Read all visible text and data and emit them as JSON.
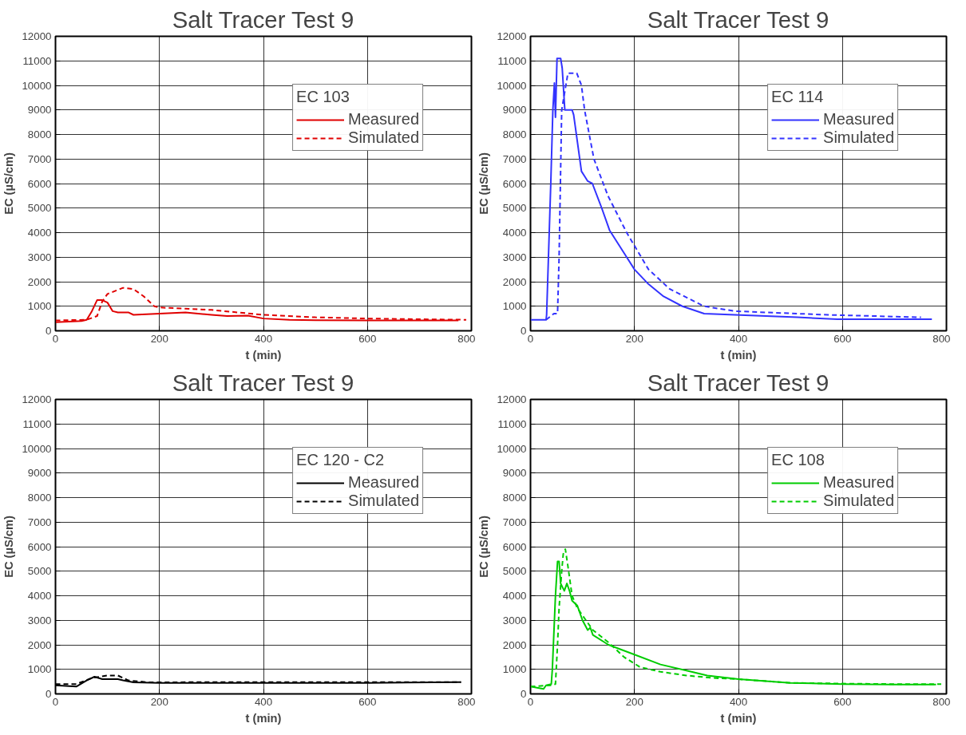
{
  "chart_data": [
    {
      "type": "line",
      "title": "Salt Tracer Test 9",
      "xlabel": "t (min)",
      "ylabel": "EC (µS/cm)",
      "legend_title": "EC 103",
      "legend": "top right",
      "grid": true,
      "xlim": [
        0,
        800
      ],
      "ylim": [
        0,
        12000
      ],
      "xticks": [
        0,
        200,
        400,
        600,
        800
      ],
      "yticks": [
        0,
        1000,
        2000,
        3000,
        4000,
        5000,
        6000,
        7000,
        8000,
        9000,
        10000,
        11000,
        12000
      ],
      "series": [
        {
          "name": "Measured",
          "color": "#e00000",
          "line_style": "solid",
          "x": [
            0,
            50,
            60,
            70,
            80,
            90,
            100,
            110,
            120,
            140,
            150,
            200,
            250,
            300,
            330,
            370,
            400,
            450,
            500,
            600,
            700,
            775
          ],
          "values": [
            350,
            400,
            450,
            800,
            1250,
            1250,
            1150,
            800,
            750,
            750,
            650,
            700,
            750,
            650,
            600,
            620,
            500,
            450,
            430,
            420,
            420,
            420
          ]
        },
        {
          "name": "Simulated",
          "color": "#e00000",
          "line_style": "dashed",
          "x": [
            0,
            60,
            80,
            90,
            100,
            130,
            150,
            170,
            190,
            200,
            250,
            300,
            400,
            500,
            600,
            700,
            790
          ],
          "values": [
            420,
            450,
            600,
            1200,
            1500,
            1750,
            1700,
            1400,
            1000,
            950,
            900,
            850,
            650,
            550,
            500,
            470,
            450
          ]
        }
      ]
    },
    {
      "type": "line",
      "title": "Salt Tracer Test 9",
      "xlabel": "t (min)",
      "ylabel": "EC (µS/cm)",
      "legend_title": "EC 114",
      "legend": "top right",
      "grid": true,
      "xlim": [
        0,
        800
      ],
      "ylim": [
        0,
        12000
      ],
      "xticks": [
        0,
        200,
        400,
        600,
        800
      ],
      "yticks": [
        0,
        1000,
        2000,
        3000,
        4000,
        5000,
        6000,
        7000,
        8000,
        9000,
        10000,
        11000,
        12000
      ],
      "series": [
        {
          "name": "Measured",
          "color": "#3333ff",
          "line_style": "solid",
          "x": [
            0,
            30,
            31,
            39,
            43,
            46,
            48,
            51,
            58,
            61,
            66,
            80,
            83,
            98,
            104,
            110,
            119,
            137,
            152,
            185,
            200,
            227,
            256,
            292,
            334,
            393,
            513,
            590,
            772
          ],
          "values": [
            450,
            450,
            650,
            6000,
            9000,
            10100,
            8700,
            11100,
            11100,
            10700,
            9000,
            9000,
            8800,
            6500,
            6300,
            6100,
            6000,
            5000,
            4100,
            3000,
            2500,
            1900,
            1400,
            1000,
            700,
            650,
            550,
            470,
            470
          ]
        },
        {
          "name": "Simulated",
          "color": "#3333ff",
          "line_style": "dashed",
          "x": [
            30,
            45,
            52,
            55,
            60,
            72,
            89,
            98,
            104,
            122,
            149,
            185,
            227,
            268,
            334,
            393,
            572,
            751
          ],
          "values": [
            450,
            700,
            700,
            3000,
            9000,
            10500,
            10500,
            10000,
            9000,
            7000,
            5500,
            4000,
            2500,
            1700,
            1000,
            800,
            650,
            550
          ]
        }
      ]
    },
    {
      "type": "line",
      "title": "Salt Tracer Test 9",
      "xlabel": "t (min)",
      "ylabel": "EC (µS/cm)",
      "legend_title": "EC 120 - C2",
      "legend": "top right",
      "grid": true,
      "xlim": [
        0,
        800
      ],
      "ylim": [
        0,
        12000
      ],
      "xticks": [
        0,
        200,
        400,
        600,
        800
      ],
      "yticks": [
        0,
        1000,
        2000,
        3000,
        4000,
        5000,
        6000,
        7000,
        8000,
        9000,
        10000,
        11000,
        12000
      ],
      "series": [
        {
          "name": "Measured",
          "color": "#000000",
          "line_style": "solid",
          "x": [
            0,
            40,
            60,
            75,
            90,
            120,
            130,
            150,
            200,
            400,
            600,
            780
          ],
          "values": [
            350,
            300,
            550,
            700,
            600,
            600,
            550,
            470,
            450,
            450,
            450,
            480
          ]
        },
        {
          "name": "Simulated",
          "color": "#000000",
          "line_style": "dashed",
          "x": [
            0,
            40,
            70,
            100,
            120,
            140,
            180,
            300,
            500,
            700,
            780
          ],
          "values": [
            400,
            400,
            650,
            750,
            750,
            550,
            470,
            480,
            480,
            480,
            480
          ]
        }
      ]
    },
    {
      "type": "line",
      "title": "Salt Tracer Test 9",
      "xlabel": "t (min)",
      "ylabel": "EC (µS/cm)",
      "legend_title": "EC 108",
      "legend": "top right",
      "grid": true,
      "xlim": [
        0,
        800
      ],
      "ylim": [
        0,
        12000
      ],
      "xticks": [
        0,
        200,
        400,
        600,
        800
      ],
      "yticks": [
        0,
        1000,
        2000,
        3000,
        4000,
        5000,
        6000,
        7000,
        8000,
        9000,
        10000,
        11000,
        12000
      ],
      "series": [
        {
          "name": "Measured",
          "color": "#00cc00",
          "line_style": "solid",
          "x": [
            0,
            25,
            30,
            40,
            42,
            48,
            52,
            55,
            58,
            65,
            70,
            75,
            80,
            90,
            100,
            110,
            115,
            120,
            150,
            200,
            250,
            300,
            340,
            400,
            500,
            600,
            700,
            780
          ],
          "values": [
            300,
            200,
            350,
            400,
            1000,
            4000,
            5400,
            5400,
            4500,
            4200,
            4500,
            4200,
            3800,
            3600,
            3000,
            2600,
            2700,
            2400,
            2000,
            1600,
            1200,
            950,
            750,
            600,
            450,
            400,
            380,
            380
          ]
        },
        {
          "name": "Simulated",
          "color": "#00cc00",
          "line_style": "dashed",
          "x": [
            0,
            40,
            48,
            52,
            55,
            60,
            63,
            67,
            72,
            80,
            90,
            100,
            120,
            150,
            180,
            210,
            250,
            300,
            350,
            400,
            500,
            600,
            700,
            790
          ],
          "values": [
            300,
            350,
            400,
            2000,
            3500,
            5000,
            5700,
            5900,
            5200,
            4000,
            3500,
            3200,
            2600,
            2100,
            1500,
            1100,
            900,
            750,
            650,
            600,
            450,
            420,
            400,
            400
          ]
        }
      ]
    }
  ]
}
